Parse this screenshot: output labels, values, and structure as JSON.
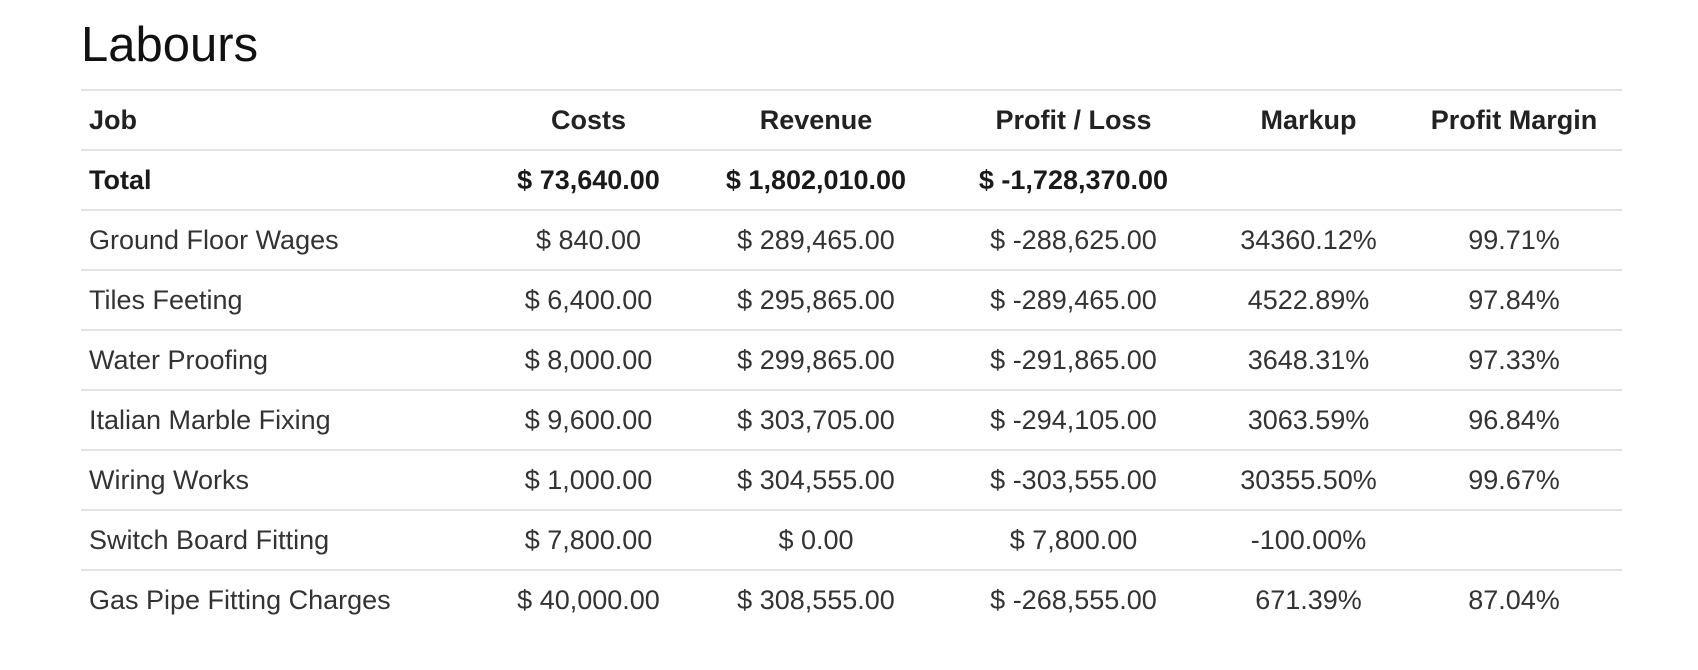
{
  "title": "Labours",
  "columns": [
    "Job",
    "Costs",
    "Revenue",
    "Profit / Loss",
    "Markup",
    "Profit Margin"
  ],
  "total": {
    "label": "Total",
    "costs": "$ 73,640.00",
    "revenue": "$ 1,802,010.00",
    "profit_loss": "$ -1,728,370.00",
    "markup": "",
    "margin": ""
  },
  "rows": [
    {
      "job": "Ground Floor Wages",
      "costs": "$ 840.00",
      "revenue": "$ 289,465.00",
      "profit_loss": "$ -288,625.00",
      "markup": "34360.12%",
      "margin": "99.71%"
    },
    {
      "job": "Tiles Feeting",
      "costs": "$ 6,400.00",
      "revenue": "$ 295,865.00",
      "profit_loss": "$ -289,465.00",
      "markup": "4522.89%",
      "margin": "97.84%"
    },
    {
      "job": "Water Proofing",
      "costs": "$ 8,000.00",
      "revenue": "$ 299,865.00",
      "profit_loss": "$ -291,865.00",
      "markup": "3648.31%",
      "margin": "97.33%"
    },
    {
      "job": "Italian Marble Fixing",
      "costs": "$ 9,600.00",
      "revenue": "$ 303,705.00",
      "profit_loss": "$ -294,105.00",
      "markup": "3063.59%",
      "margin": "96.84%"
    },
    {
      "job": "Wiring Works",
      "costs": "$ 1,000.00",
      "revenue": "$ 304,555.00",
      "profit_loss": "$ -303,555.00",
      "markup": "30355.50%",
      "margin": "99.67%"
    },
    {
      "job": "Switch Board Fitting",
      "costs": "$ 7,800.00",
      "revenue": "$ 0.00",
      "profit_loss": "$ 7,800.00",
      "markup": "-100.00%",
      "margin": ""
    },
    {
      "job": "Gas Pipe Fitting Charges",
      "costs": "$ 40,000.00",
      "revenue": "$ 308,555.00",
      "profit_loss": "$ -268,555.00",
      "markup": "671.39%",
      "margin": "87.04%"
    }
  ]
}
